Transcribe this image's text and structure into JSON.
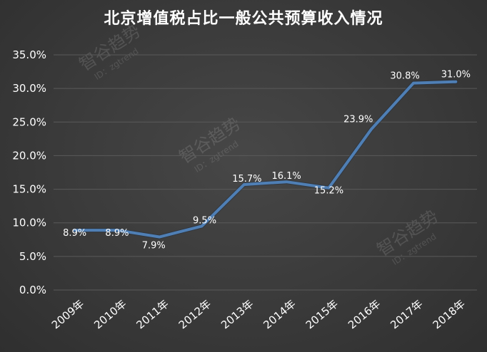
{
  "chart_data": {
    "type": "line",
    "title": "北京增值税占比一般公共预算收入情况",
    "categories": [
      "2009年",
      "2010年",
      "2011年",
      "2012年",
      "2013年",
      "2014年",
      "2015年",
      "2016年",
      "2017年",
      "2018年"
    ],
    "series": [
      {
        "values": [
          8.9,
          8.9,
          7.9,
          9.5,
          15.7,
          16.1,
          15.2,
          23.9,
          30.8,
          31.0
        ]
      }
    ],
    "data_labels": [
      "8.9%",
      "8.9%",
      "7.9%",
      "9.5%",
      "15.7%",
      "16.1%",
      "15.2%",
      "23.9%",
      "30.8%",
      "31.0%"
    ],
    "yticks": [
      "0.0%",
      "5.0%",
      "10.0%",
      "15.0%",
      "20.0%",
      "25.0%",
      "30.0%",
      "35.0%"
    ],
    "ylim": [
      0,
      35
    ],
    "grid": true,
    "legend": "none",
    "colors": {
      "line": "#4f7fb5",
      "grid": "#5a5a5a",
      "text": "#ffffff",
      "background": "#3a3a3a"
    }
  },
  "watermark": {
    "name": "智谷趋势",
    "id": "ID：zgtrend"
  }
}
